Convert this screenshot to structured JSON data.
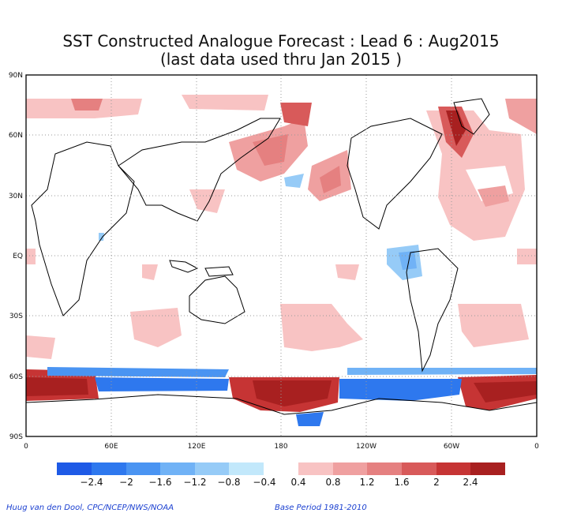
{
  "header": {
    "title_line1": "SST Constructed Analogue Forecast : Lead 6 : Aug2015",
    "title_line2": "(last data used thru Jan 2015 )"
  },
  "map": {
    "lat_ticks": [
      "90N",
      "60N",
      "30N",
      "EQ",
      "30S",
      "60S",
      "90S"
    ],
    "lon_ticks": [
      "0",
      "60E",
      "120E",
      "180",
      "120W",
      "60W",
      "0"
    ]
  },
  "legend": {
    "negative_colors": [
      "#1e5ae6",
      "#2e78ee",
      "#4a94f2",
      "#70b2f6",
      "#96cbf7",
      "#c2e8fb"
    ],
    "positive_colors": [
      "#f8c3c3",
      "#efa0a0",
      "#e58080",
      "#d85a5a",
      "#c63434",
      "#a82020"
    ],
    "labels": [
      "−2.4",
      "−2",
      "−1.6",
      "−1.2",
      "−0.8",
      "−0.4",
      "0.4",
      "0.8",
      "1.2",
      "1.6",
      "2",
      "2.4"
    ]
  },
  "footer": {
    "left": "Huug van den Dool, CPC/NCEP/NWS/NOAA",
    "right": "Base Period 1981-2010"
  }
}
